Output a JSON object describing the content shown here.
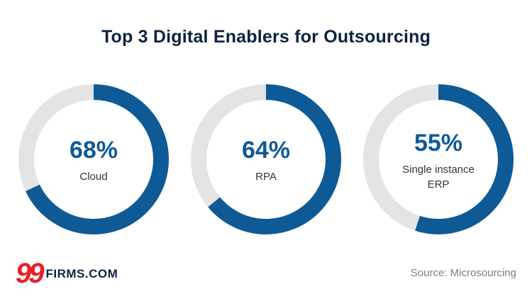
{
  "title": "Top 3 Digital Enablers for Outsourcing",
  "source": "Source: Microsourcing",
  "logo": {
    "number": "99",
    "text": "FIRMS.COM"
  },
  "colors": {
    "filled": "#0e5a96",
    "track": "#e4e4e4",
    "title": "#0d2240",
    "logo_red": "#e5202a"
  },
  "chart_data": {
    "type": "pie",
    "title": "Top 3 Digital Enablers for Outsourcing",
    "categories": [
      "Cloud",
      "RPA",
      "Single instance ERP"
    ],
    "values": [
      68,
      64,
      55
    ],
    "value_labels": [
      "68%",
      "64%",
      "55%"
    ],
    "label_lines": [
      [
        "Cloud"
      ],
      [
        "RPA"
      ],
      [
        "Single instance",
        "ERP"
      ]
    ]
  }
}
